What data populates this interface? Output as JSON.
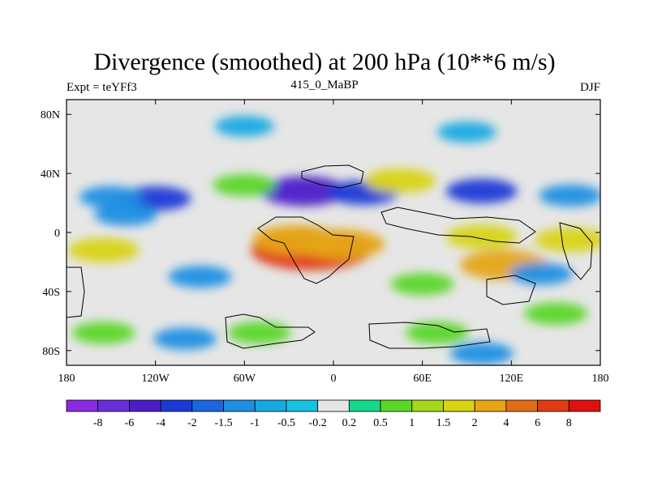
{
  "chart_data": {
    "type": "contour-map",
    "title": "Divergence (smoothed) at 200 hPa (10**6 m/s)",
    "left_label": "Expt = teYFf3",
    "center_label": "415_0_MaBP",
    "right_label": "DJF",
    "x_ticks": [
      "180",
      "120W",
      "60W",
      "0",
      "60E",
      "120E",
      "180"
    ],
    "x_values": [
      -180,
      -120,
      -60,
      0,
      60,
      120,
      180
    ],
    "y_ticks": [
      "80N",
      "40N",
      "0",
      "40S",
      "80S"
    ],
    "y_values": [
      80,
      40,
      0,
      -40,
      -80
    ],
    "xlim": [
      -180,
      180
    ],
    "ylim": [
      -90,
      90
    ],
    "colorbar": {
      "labels": [
        "-8",
        "-6",
        "-4",
        "-2",
        "-1.5",
        "-1",
        "-0.5",
        "-0.2",
        "0.2",
        "0.5",
        "1",
        "1.5",
        "2",
        "4",
        "6",
        "8"
      ],
      "colors": [
        "#8a2be2",
        "#6a2fd8",
        "#4b1ec8",
        "#1a3ad6",
        "#1b66e0",
        "#1d8fe3",
        "#17a9e3",
        "#16c2df",
        "#e6e6e6",
        "#14d88a",
        "#5ad726",
        "#a5d71a",
        "#d8d414",
        "#e5a514",
        "#e26d14",
        "#e23a14",
        "#e01010"
      ]
    },
    "blobs": [
      {
        "lon": -120,
        "lat": 23,
        "value": -2
      },
      {
        "lon": -150,
        "lat": 24,
        "value": -1
      },
      {
        "lon": -20,
        "lat": 28,
        "value": -4
      },
      {
        "lon": 20,
        "lat": 27,
        "value": -2
      },
      {
        "lon": 100,
        "lat": 28,
        "value": -2
      },
      {
        "lon": 160,
        "lat": 25,
        "value": -1
      },
      {
        "lon": 45,
        "lat": 35,
        "value": 2
      },
      {
        "lon": -60,
        "lat": 32,
        "value": 1
      },
      {
        "lon": -140,
        "lat": 12,
        "value": -1
      },
      {
        "lon": -15,
        "lat": -12,
        "value": 8
      },
      {
        "lon": -25,
        "lat": -5,
        "value": 4
      },
      {
        "lon": 5,
        "lat": -8,
        "value": 4
      },
      {
        "lon": 100,
        "lat": -3,
        "value": 2
      },
      {
        "lon": 160,
        "lat": -5,
        "value": 2
      },
      {
        "lon": -155,
        "lat": -12,
        "value": 2
      },
      {
        "lon": 115,
        "lat": -22,
        "value": 4
      },
      {
        "lon": -90,
        "lat": -30,
        "value": -1
      },
      {
        "lon": 60,
        "lat": -35,
        "value": 1
      },
      {
        "lon": 140,
        "lat": -28,
        "value": -1
      },
      {
        "lon": -155,
        "lat": -68,
        "value": 1
      },
      {
        "lon": -50,
        "lat": -68,
        "value": 1
      },
      {
        "lon": 70,
        "lat": -68,
        "value": 1
      },
      {
        "lon": 150,
        "lat": -55,
        "value": 1
      },
      {
        "lon": -100,
        "lat": -72,
        "value": -1
      },
      {
        "lon": 100,
        "lat": -82,
        "value": -1
      },
      {
        "lon": -60,
        "lat": 72,
        "value": -0.5
      },
      {
        "lon": 90,
        "lat": 68,
        "value": -0.5
      }
    ]
  }
}
